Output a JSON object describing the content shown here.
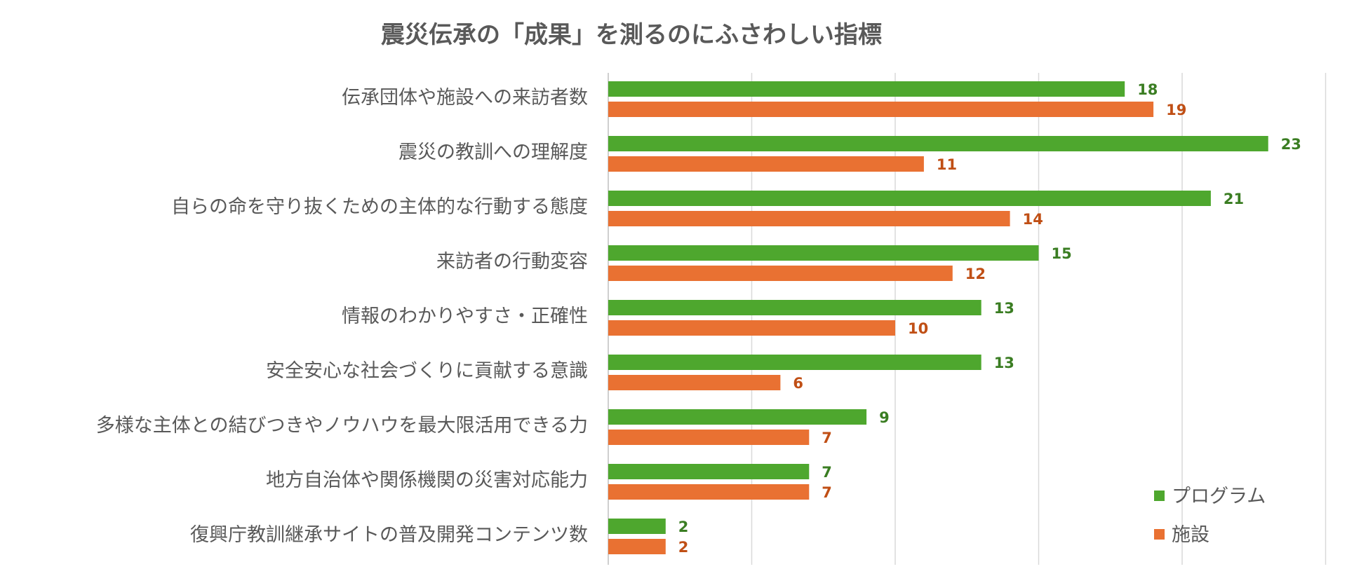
{
  "chart_data": {
    "type": "bar",
    "orientation": "horizontal",
    "title": "震災伝承の「成果」を測るのにふさわしい指標",
    "xlabel": "",
    "ylabel": "",
    "xlim": [
      0,
      25
    ],
    "grid": true,
    "legend_position": "bottom-right",
    "categories": [
      "伝承団体や施設への来訪者数",
      "震災の教訓への理解度",
      "自らの命を守り抜くための主体的な行動する態度",
      "来訪者の行動変容",
      "情報のわかりやすさ・正確性",
      "安全安心な社会づくりに貢献する意識",
      "多様な主体との結びつきやノウハウを最大限活用できる力",
      "地方自治体や関係機関の災害対応能力",
      "復興庁教訓継承サイトの普及開発コンテンツ数"
    ],
    "series": [
      {
        "name": "プログラム",
        "color": "#4EA72E",
        "label_color": "#3A7D22",
        "values": [
          18,
          23,
          21,
          15,
          13,
          13,
          9,
          7,
          2
        ]
      },
      {
        "name": "施設",
        "color": "#E97132",
        "label_color": "#C04F15",
        "values": [
          19,
          11,
          14,
          12,
          10,
          6,
          7,
          7,
          2
        ]
      }
    ]
  }
}
